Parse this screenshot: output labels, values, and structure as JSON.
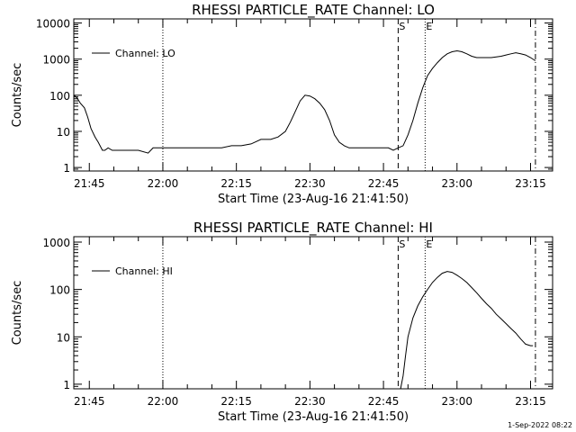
{
  "timestamp": "1-Sep-2022 08:22",
  "chart_data": [
    {
      "type": "line",
      "title": "RHESSI PARTICLE_RATE Channel: LO",
      "xlabel": "Start Time (23-Aug-16 21:41:50)",
      "ylabel": "Counts/sec",
      "yscale": "log",
      "xlim": [
        "21:41:50",
        "23:19:30"
      ],
      "ylim": [
        0.8,
        13000
      ],
      "xticks": [
        "21:45",
        "22:00",
        "22:15",
        "22:30",
        "22:45",
        "23:00",
        "23:15"
      ],
      "yticks": [
        "1",
        "10",
        "100",
        "1000",
        "10000"
      ],
      "legend": "top-left",
      "grid": false,
      "markers": [
        {
          "label": "S",
          "x": "22:48:00",
          "style": "dashed"
        },
        {
          "label": "E",
          "x": "22:53:30",
          "style": "dotted"
        },
        {
          "label": "",
          "x": "22:00:00",
          "style": "dotted"
        },
        {
          "label": "",
          "x": "23:16:00",
          "style": "dashdot"
        }
      ],
      "series": [
        {
          "name": "Channel: LO",
          "x": [
            "21:41:50",
            "21:42:30",
            "21:43:10",
            "21:44:00",
            "21:44:40",
            "21:45:20",
            "21:46:10",
            "21:46:50",
            "21:47:40",
            "21:48:10",
            "21:48:50",
            "21:49:40",
            "21:50:30",
            "21:51:50",
            "21:53:00",
            "21:55:00",
            "21:57:00",
            "21:58:00",
            "21:59:50",
            "22:02:00",
            "22:04:00",
            "22:06:00",
            "22:08:00",
            "22:10:00",
            "22:12:00",
            "22:14:00",
            "22:16:00",
            "22:18:00",
            "22:20:00",
            "22:22:00",
            "22:23:30",
            "22:25:00",
            "22:26:00",
            "22:27:00",
            "22:28:00",
            "22:29:00",
            "22:30:00",
            "22:31:00",
            "22:32:00",
            "22:33:00",
            "22:34:00",
            "22:35:00",
            "22:36:00",
            "22:37:00",
            "22:38:00",
            "22:40:00",
            "22:42:00",
            "22:44:00",
            "22:46:00",
            "22:47:00",
            "22:48:00",
            "22:49:00",
            "22:50:00",
            "22:51:00",
            "22:52:00",
            "22:53:00",
            "22:54:00",
            "22:55:00",
            "22:56:00",
            "22:57:00",
            "22:58:00",
            "22:59:00",
            "23:00:00",
            "23:01:00",
            "23:02:00",
            "23:03:00",
            "23:04:00",
            "23:05:00",
            "23:06:00",
            "23:07:00",
            "23:08:00",
            "23:09:00",
            "23:10:00",
            "23:11:00",
            "23:12:00",
            "23:13:00",
            "23:14:00",
            "23:15:00",
            "23:16:00"
          ],
          "values": [
            100,
            85,
            60,
            45,
            25,
            12,
            7,
            5,
            3,
            3,
            3.5,
            3,
            3,
            3,
            3,
            3,
            2.5,
            3.5,
            3.5,
            3.5,
            3.5,
            3.5,
            3.5,
            3.5,
            3.5,
            4,
            4,
            4.5,
            6,
            6,
            7,
            10,
            18,
            35,
            70,
            100,
            95,
            80,
            60,
            40,
            20,
            8,
            5,
            4,
            3.5,
            3.5,
            3.5,
            3.5,
            3.5,
            3,
            3.5,
            4,
            8,
            20,
            60,
            160,
            350,
            550,
            800,
            1100,
            1400,
            1600,
            1700,
            1600,
            1400,
            1200,
            1100,
            1100,
            1100,
            1100,
            1150,
            1200,
            1300,
            1400,
            1500,
            1400,
            1300,
            1100,
            900
          ]
        }
      ]
    },
    {
      "type": "line",
      "title": "RHESSI PARTICLE_RATE Channel: HI",
      "xlabel": "Start Time (23-Aug-16 21:41:50)",
      "ylabel": "Counts/sec",
      "yscale": "log",
      "xlim": [
        "21:41:50",
        "23:19:30"
      ],
      "ylim": [
        0.8,
        1300
      ],
      "xticks": [
        "21:45",
        "22:00",
        "22:15",
        "22:30",
        "22:45",
        "23:00",
        "23:15"
      ],
      "yticks": [
        "1",
        "10",
        "100",
        "1000"
      ],
      "legend": "top-left",
      "grid": false,
      "markers": [
        {
          "label": "S",
          "x": "22:48:00",
          "style": "dashed"
        },
        {
          "label": "E",
          "x": "22:53:30",
          "style": "dotted"
        },
        {
          "label": "",
          "x": "22:00:00",
          "style": "dotted"
        },
        {
          "label": "",
          "x": "23:16:00",
          "style": "dashdot"
        }
      ],
      "series": [
        {
          "name": "Channel: HI",
          "x": [
            "22:48:30",
            "22:49:00",
            "22:49:30",
            "22:50:00",
            "22:51:00",
            "22:52:00",
            "22:53:00",
            "22:54:00",
            "22:55:00",
            "22:56:00",
            "22:57:00",
            "22:58:00",
            "22:59:00",
            "23:00:00",
            "23:01:00",
            "23:02:00",
            "23:03:00",
            "23:04:00",
            "23:05:00",
            "23:06:00",
            "23:07:00",
            "23:08:00",
            "23:09:00",
            "23:10:00",
            "23:11:00",
            "23:12:00",
            "23:13:00",
            "23:14:00",
            "23:15:00",
            "23:15:30"
          ],
          "values": [
            0.8,
            1.5,
            4,
            10,
            25,
            45,
            70,
            100,
            140,
            180,
            220,
            240,
            230,
            200,
            170,
            140,
            110,
            85,
            65,
            50,
            40,
            30,
            24,
            19,
            15,
            12,
            9,
            7,
            6.5,
            6.5
          ]
        }
      ]
    }
  ]
}
